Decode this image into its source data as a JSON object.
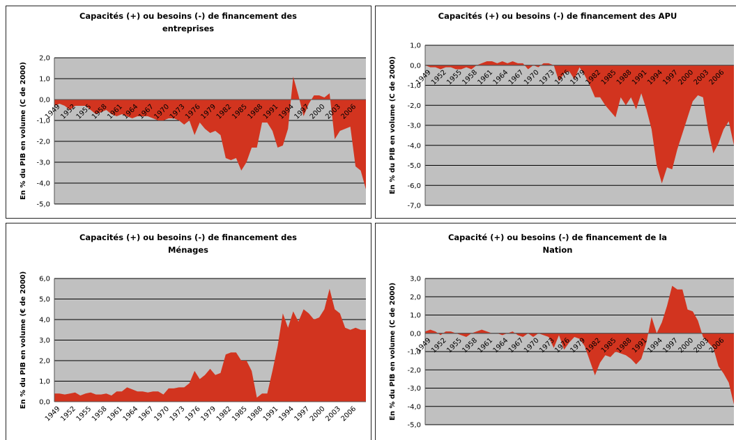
{
  "chart_data": [
    {
      "type": "area",
      "title": [
        "Capacités (+) ou besoins (-) de financement des",
        "entreprises"
      ],
      "y_label": "En % du PIB en volume (C de 2000)",
      "categories": [
        "1949",
        null,
        null,
        "1952",
        null,
        null,
        "1955",
        null,
        null,
        "1958",
        null,
        null,
        "1961",
        null,
        null,
        "1964",
        null,
        null,
        "1967",
        null,
        null,
        "1970",
        null,
        null,
        "1973",
        null,
        null,
        "1976",
        null,
        null,
        "1979",
        null,
        null,
        "1982",
        null,
        null,
        "1985",
        null,
        null,
        "1988",
        null,
        null,
        "1991",
        null,
        null,
        "1994",
        null,
        null,
        "1997",
        null,
        null,
        "2000",
        null,
        null,
        "2003",
        null,
        null,
        "2006",
        null,
        null,
        null
      ],
      "values": [
        -0.3,
        -0.2,
        -0.3,
        -0.5,
        -0.3,
        -0.3,
        -0.3,
        -0.5,
        -0.7,
        -0.6,
        -0.5,
        -0.7,
        -0.8,
        -0.7,
        -0.8,
        -0.9,
        -0.8,
        -0.8,
        -0.8,
        -0.9,
        -1.0,
        -1.0,
        -0.9,
        -0.9,
        -1.0,
        -1.2,
        -1.0,
        -1.7,
        -1.1,
        -1.4,
        -1.6,
        -1.5,
        -1.7,
        -2.8,
        -2.9,
        -2.8,
        -3.4,
        -3.0,
        -2.3,
        -2.3,
        -1.1,
        -1.1,
        -1.5,
        -2.3,
        -2.2,
        -1.4,
        1.1,
        0.2,
        -0.8,
        -0.2,
        0.2,
        0.2,
        0.1,
        0.3,
        -1.9,
        -1.5,
        -1.4,
        -1.3,
        -3.2,
        -3.4,
        -4.3
      ],
      "color": "#d2341f",
      "ylim": [
        -5,
        2
      ],
      "yticks": [
        {
          "value": 2,
          "label": "2,0"
        },
        {
          "value": 1,
          "label": "1,0"
        },
        {
          "value": 0,
          "label": "0,0"
        },
        {
          "value": -1,
          "label": "-1,0"
        },
        {
          "value": -2,
          "label": "-2,0"
        },
        {
          "value": -3,
          "label": "-3,0"
        },
        {
          "value": -4,
          "label": "-4,0"
        },
        {
          "value": -5,
          "label": "-5,0"
        }
      ],
      "grid": true
    },
    {
      "type": "area",
      "title": [
        "Capacités (+) ou besoins (-) de financement des APU"
      ],
      "y_label": "En % du PIB en volume (C de 2000)",
      "categories": [
        "1949",
        null,
        null,
        "1952",
        null,
        null,
        "1955",
        null,
        null,
        "1958",
        null,
        null,
        "1961",
        null,
        null,
        "1964",
        null,
        null,
        "1967",
        null,
        null,
        "1970",
        null,
        null,
        "1973",
        null,
        null,
        "1976",
        null,
        null,
        "1979",
        null,
        null,
        "1982",
        null,
        null,
        "1985",
        null,
        null,
        "1988",
        null,
        null,
        "1991",
        null,
        null,
        "1994",
        null,
        null,
        "1997",
        null,
        null,
        "2000",
        null,
        null,
        "2003",
        null,
        null,
        "2006",
        null,
        null,
        null
      ],
      "values": [
        0,
        -0.1,
        -0.1,
        -0.2,
        -0.1,
        -0.1,
        -0.2,
        -0.2,
        -0.1,
        -0.2,
        0,
        0.1,
        0.2,
        0.2,
        0.1,
        0.2,
        0.1,
        0.2,
        0.1,
        0.1,
        -0.2,
        0.0,
        -0.1,
        0.1,
        0.1,
        0.0,
        -0.8,
        -0.4,
        -0.3,
        -0.7,
        -0.1,
        -0.5,
        -1.0,
        -1.6,
        -1.6,
        -2.0,
        -2.3,
        -2.6,
        -1.6,
        -2.0,
        -1.6,
        -2.2,
        -1.4,
        -2.2,
        -3.2,
        -5.0,
        -5.9,
        -5.1,
        -5.2,
        -4.2,
        -3.4,
        -2.6,
        -1.8,
        -1.5,
        -1.6,
        -3.2,
        -4.4,
        -3.9,
        -3.2,
        -2.8,
        -4.0
      ],
      "color": "#d2341f",
      "ylim": [
        -7,
        1
      ],
      "yticks": [
        {
          "value": 1,
          "label": "1,0"
        },
        {
          "value": 0,
          "label": "0,0"
        },
        {
          "value": -1,
          "label": "-1,0"
        },
        {
          "value": -2,
          "label": "-2,0"
        },
        {
          "value": -3,
          "label": "-3,0"
        },
        {
          "value": -4,
          "label": "-4,0"
        },
        {
          "value": -5,
          "label": "-5,0"
        },
        {
          "value": -6,
          "label": "-6,0"
        },
        {
          "value": -7,
          "label": "-7,0"
        }
      ],
      "grid": true
    },
    {
      "type": "area",
      "title": [
        "Capacités (+) ou besoins (-) de financement des",
        "Ménages"
      ],
      "y_label": "En % du PIB en volume (€ de 2000)",
      "categories": [
        "1949",
        null,
        null,
        "1952",
        null,
        null,
        "1955",
        null,
        null,
        "1958",
        null,
        null,
        "1961",
        null,
        null,
        "1964",
        null,
        null,
        "1967",
        null,
        null,
        "1970",
        null,
        null,
        "1973",
        null,
        null,
        "1976",
        null,
        null,
        "1979",
        null,
        null,
        "1982",
        null,
        null,
        "1985",
        null,
        null,
        "1988",
        null,
        null,
        "1991",
        null,
        null,
        "1994",
        null,
        null,
        "1997",
        null,
        null,
        "2000",
        null,
        null,
        "2003",
        null,
        null,
        "2006",
        null,
        null,
        null
      ],
      "values": [
        0.4,
        0.4,
        0.35,
        0.4,
        0.45,
        0.3,
        0.4,
        0.45,
        0.35,
        0.35,
        0.4,
        0.3,
        0.5,
        0.5,
        0.7,
        0.6,
        0.5,
        0.5,
        0.45,
        0.5,
        0.5,
        0.35,
        0.65,
        0.65,
        0.7,
        0.7,
        0.9,
        1.5,
        1.1,
        1.3,
        1.6,
        1.3,
        1.4,
        2.3,
        2.4,
        2.4,
        2.0,
        2.0,
        1.5,
        0.2,
        0.4,
        0.4,
        1.5,
        2.7,
        4.3,
        3.6,
        4.4,
        3.9,
        4.5,
        4.3,
        4.0,
        4.1,
        4.5,
        5.5,
        4.5,
        4.3,
        3.6,
        3.5,
        3.6,
        3.5,
        3.5
      ],
      "color": "#d2341f",
      "ylim": [
        0,
        6
      ],
      "yticks": [
        {
          "value": 6,
          "label": "6,0"
        },
        {
          "value": 5,
          "label": "5,0"
        },
        {
          "value": 4,
          "label": "4,0"
        },
        {
          "value": 3,
          "label": "3,0"
        },
        {
          "value": 2,
          "label": "2,0"
        },
        {
          "value": 1,
          "label": "1,0"
        },
        {
          "value": 0,
          "label": "0,0"
        }
      ],
      "grid": true
    },
    {
      "type": "area",
      "title": [
        "Capacité (+) ou besoins (-) de financement de la",
        "Nation"
      ],
      "y_label": "En % du PIB en volume (C de 2000)",
      "categories": [
        "1949",
        null,
        null,
        "1952",
        null,
        null,
        "1955",
        null,
        null,
        "1958",
        null,
        null,
        "1961",
        null,
        null,
        "1964",
        null,
        null,
        "1967",
        null,
        null,
        "1970",
        null,
        null,
        "1973",
        null,
        null,
        "1976",
        null,
        null,
        "1979",
        null,
        null,
        "1982",
        null,
        null,
        "1985",
        null,
        null,
        "1988",
        null,
        null,
        "1991",
        null,
        null,
        "1994",
        null,
        null,
        "1997",
        null,
        null,
        "2000",
        null,
        null,
        "2003",
        null,
        null,
        "2006",
        null,
        null,
        null
      ],
      "values": [
        0.1,
        0.2,
        0.1,
        -0.1,
        0.1,
        0.1,
        0.0,
        -0.1,
        -0.2,
        0.0,
        0.1,
        0.2,
        0.1,
        0.0,
        0.0,
        -0.1,
        0.0,
        0.1,
        -0.1,
        -0.2,
        0.0,
        -0.2,
        0.0,
        -0.1,
        -0.2,
        -0.8,
        -0.1,
        -0.9,
        -0.5,
        -0.2,
        -0.3,
        -0.7,
        -1.5,
        -2.3,
        -1.6,
        -1.2,
        -1.3,
        -1.0,
        -1.1,
        -1.2,
        -1.4,
        -1.7,
        -1.4,
        -0.5,
        0.9,
        0.0,
        0.6,
        1.5,
        2.6,
        2.4,
        2.4,
        1.3,
        1.2,
        0.7,
        -0.2,
        -0.5,
        -0.8,
        -1.8,
        -2.2,
        -2.7,
        -3.9
      ],
      "color": "#d2341f",
      "ylim": [
        -5,
        3
      ],
      "yticks": [
        {
          "value": 3,
          "label": "3,0"
        },
        {
          "value": 2,
          "label": "2,0"
        },
        {
          "value": 1,
          "label": "1,0"
        },
        {
          "value": 0,
          "label": "0,0"
        },
        {
          "value": -1,
          "label": "-1,0"
        },
        {
          "value": -2,
          "label": "-2,0"
        },
        {
          "value": -3,
          "label": "-3,0"
        },
        {
          "value": -4,
          "label": "-4,0"
        },
        {
          "value": -5,
          "label": "-5,0"
        }
      ],
      "grid": true
    }
  ]
}
